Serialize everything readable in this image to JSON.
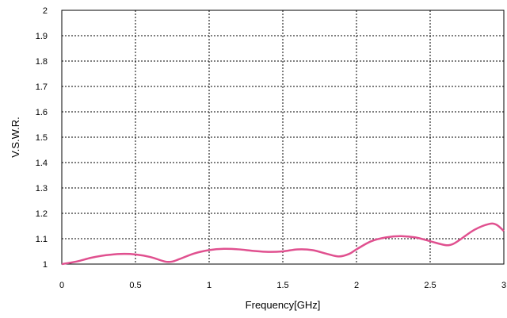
{
  "chart_data": {
    "type": "line",
    "title": "",
    "xlabel": "Frequency[GHz]",
    "ylabel": "V.S.W.R.",
    "xlim": [
      0,
      3
    ],
    "ylim": [
      1,
      2
    ],
    "x_ticks": [
      "0",
      "0.5",
      "1",
      "1.5",
      "2",
      "2.5",
      "3"
    ],
    "y_ticks": [
      "1",
      "1.1",
      "1.2",
      "1.3",
      "1.4",
      "1.5",
      "1.6",
      "1.7",
      "1.8",
      "1.9",
      "2"
    ],
    "grid": "dotted",
    "series": [
      {
        "color": "#e0508f",
        "x": [
          0,
          0.1,
          0.2,
          0.3,
          0.4,
          0.5,
          0.6,
          0.7,
          0.75,
          0.8,
          0.9,
          1.0,
          1.1,
          1.2,
          1.3,
          1.4,
          1.5,
          1.6,
          1.7,
          1.8,
          1.88,
          1.95,
          2.0,
          2.1,
          2.2,
          2.3,
          2.4,
          2.5,
          2.6,
          2.65,
          2.7,
          2.8,
          2.9,
          2.95,
          3.0
        ],
        "y": [
          1.0,
          1.01,
          1.025,
          1.035,
          1.04,
          1.038,
          1.028,
          1.01,
          1.01,
          1.02,
          1.042,
          1.055,
          1.06,
          1.058,
          1.052,
          1.048,
          1.05,
          1.058,
          1.055,
          1.04,
          1.03,
          1.04,
          1.058,
          1.09,
          1.105,
          1.11,
          1.105,
          1.09,
          1.075,
          1.078,
          1.095,
          1.135,
          1.158,
          1.155,
          1.13
        ]
      }
    ]
  }
}
